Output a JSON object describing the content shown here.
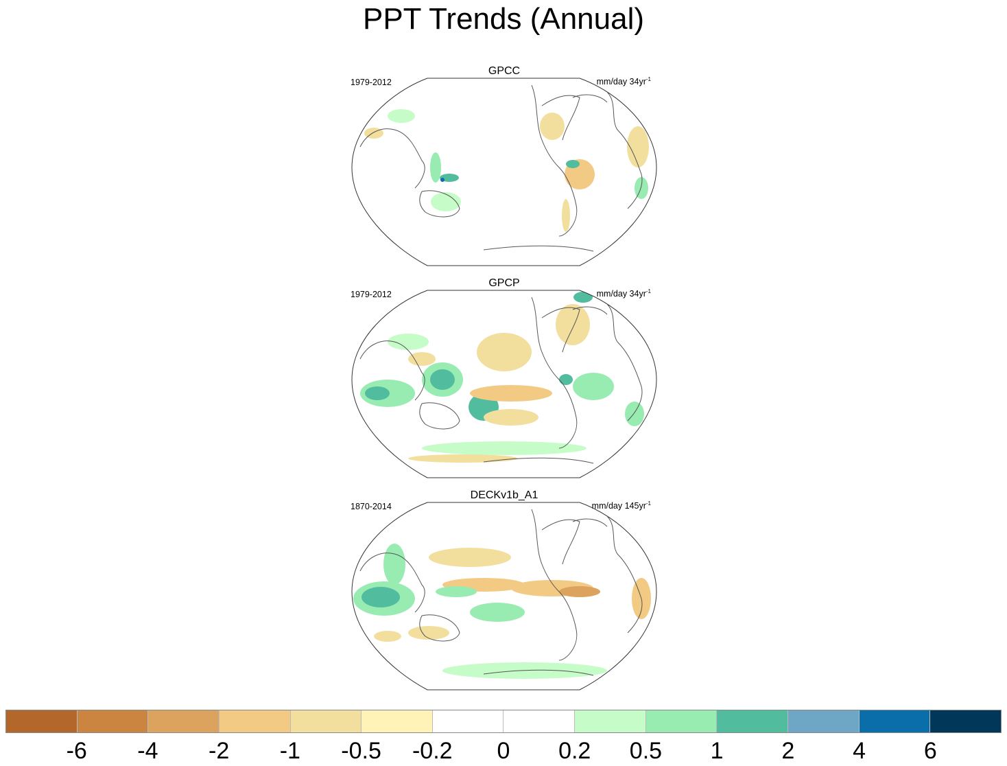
{
  "title": "PPT Trends (Annual)",
  "panels": [
    {
      "name": "GPCC",
      "period": "1979-2012",
      "units": "mm/day 34yr",
      "units_sup": "-1"
    },
    {
      "name": "GPCP",
      "period": "1979-2012",
      "units": "mm/day 34yr",
      "units_sup": "-1"
    },
    {
      "name": "DECKv1b_A1",
      "period": "1870-2014",
      "units": "mm/day 145yr",
      "units_sup": "-1"
    }
  ],
  "colorbar": {
    "colors": [
      "#b4672a",
      "#cc8540",
      "#dca35f",
      "#f2ca84",
      "#f2df9e",
      "#fff3b8",
      "#ffffff",
      "#ffffff",
      "#c6fcc8",
      "#98ecb1",
      "#52bc9e",
      "#6ea7c6",
      "#0a6eab",
      "#01385a"
    ],
    "labels": [
      "-6",
      "-4",
      "-2",
      "-1",
      "-0.5",
      "-0.2",
      "0",
      "0.2",
      "0.5",
      "1",
      "2",
      "4",
      "6"
    ]
  }
}
